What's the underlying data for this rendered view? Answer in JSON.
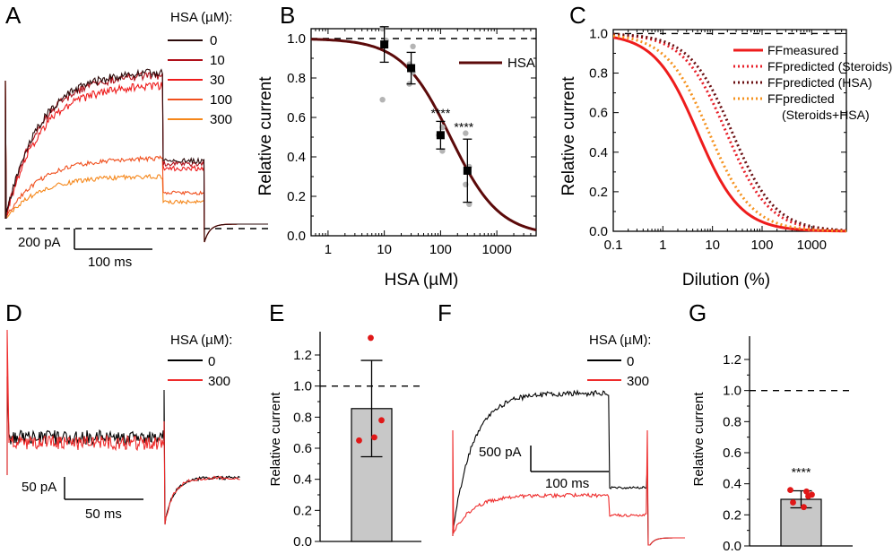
{
  "panel_labels": [
    "A",
    "B",
    "C",
    "D",
    "E",
    "F",
    "G"
  ],
  "colors": {
    "hsa0": "#2b0a0a",
    "hsa10": "#b0101a",
    "hsa30": "#ee1c1c",
    "hsa100": "#f0501e",
    "hsa300": "#f5871a",
    "fit": "#5c0a0a",
    "measured": "#ee1c1c",
    "steroids": "#e8202a",
    "hsa_pred": "#6b0f12",
    "steroids_hsa": "#f5921e",
    "black": "#000000",
    "red": "#ee2b2b",
    "bar_fill": "#c8c8c8",
    "dots_gray": "#b4b4b4"
  },
  "chart_data": [
    {
      "panel": "A",
      "type": "line",
      "title": "",
      "legend_title": "HSA (µM):",
      "series": [
        {
          "name": "0",
          "color": "#2b0a0a",
          "steady": 0.97,
          "tail": 0.38
        },
        {
          "name": "10",
          "color": "#b0101a",
          "steady": 0.95,
          "tail": 0.36
        },
        {
          "name": "30",
          "color": "#ee1c1c",
          "steady": 0.88,
          "tail": 0.33
        },
        {
          "name": "100",
          "color": "#f0501e",
          "steady": 0.4,
          "tail": 0.17
        },
        {
          "name": "300",
          "color": "#f5871a",
          "steady": 0.28,
          "tail": 0.11
        }
      ],
      "scalebar_y": "200 pA",
      "scalebar_x": "100 ms"
    },
    {
      "panel": "B",
      "type": "scatter",
      "xscale": "log",
      "xlim": [
        0.5,
        5000
      ],
      "ylim": [
        0.0,
        1.05
      ],
      "xlabel": "HSA (µM)",
      "ylabel": "Relative current",
      "xticks": [
        "1",
        "10",
        "100",
        "1000"
      ],
      "yticks": [
        "0.0",
        "0.2",
        "0.4",
        "0.6",
        "0.8",
        "1.0"
      ],
      "legend": [
        "HSA"
      ],
      "fit": {
        "ic50": 150,
        "hill": 1.0
      },
      "points": [
        {
          "x": 10,
          "y": 0.97,
          "err": 0.09
        },
        {
          "x": 30,
          "y": 0.85,
          "err": 0.08
        },
        {
          "x": 100,
          "y": 0.51,
          "err": 0.07
        },
        {
          "x": 300,
          "y": 0.33,
          "err": 0.16
        }
      ],
      "individual": [
        {
          "x": 10,
          "y": 1.05
        },
        {
          "x": 10,
          "y": 0.99
        },
        {
          "x": 10,
          "y": 0.69
        },
        {
          "x": 30,
          "y": 0.96
        },
        {
          "x": 30,
          "y": 0.87
        },
        {
          "x": 30,
          "y": 0.83
        },
        {
          "x": 30,
          "y": 0.77
        },
        {
          "x": 100,
          "y": 0.55
        },
        {
          "x": 100,
          "y": 0.51
        },
        {
          "x": 100,
          "y": 0.43
        },
        {
          "x": 300,
          "y": 0.52
        },
        {
          "x": 300,
          "y": 0.35
        },
        {
          "x": 300,
          "y": 0.26
        },
        {
          "x": 300,
          "y": 0.16
        }
      ],
      "annotations": [
        {
          "x": 100,
          "y": 0.6,
          "text": "****"
        },
        {
          "x": 300,
          "y": 0.53,
          "text": "****"
        }
      ],
      "reference_line": 1.0
    },
    {
      "panel": "C",
      "type": "line",
      "xscale": "log",
      "xlim": [
        0.1,
        5000
      ],
      "ylim": [
        0.0,
        1.02
      ],
      "xlabel": "Dilution (%)",
      "ylabel": "Relative current",
      "xticks": [
        "0.1",
        "1",
        "10",
        "100",
        "1000"
      ],
      "yticks": [
        "0.0",
        "0.2",
        "0.4",
        "0.6",
        "0.8",
        "1.0"
      ],
      "series": [
        {
          "name": "FFmeasured",
          "style": "solid",
          "color": "#ee1c1c",
          "ic50": 5.0
        },
        {
          "name": "FFpredicted (Steroids)",
          "style": "dotted",
          "color": "#e8202a",
          "ic50": 19.0
        },
        {
          "name": "FFpredicted (HSA)",
          "style": "dotted",
          "color": "#6b0f12",
          "ic50": 25.0
        },
        {
          "name": "FFpredicted (Steroids+HSA)",
          "style": "dotted",
          "color": "#f5921e",
          "ic50": 8.5
        }
      ],
      "legend_labels": [
        "FFmeasured",
        "FFpredicted (Steroids)",
        "FFpredicted (HSA)",
        "FFpredicted",
        "(Steroids+HSA)"
      ],
      "hill": 1.0,
      "reference_line": 1.0
    },
    {
      "panel": "D",
      "type": "line",
      "legend_title": "HSA (µM):",
      "series": [
        {
          "name": "0",
          "color": "#000000",
          "level": 0.42
        },
        {
          "name": "300",
          "color": "#ee2b2b",
          "level": 0.36
        }
      ],
      "scalebar_y": "50 pA",
      "scalebar_x": "50 ms"
    },
    {
      "panel": "E",
      "type": "bar",
      "ylabel": "Relative current",
      "ylim": [
        0.0,
        1.35
      ],
      "yticks": [
        "0.0",
        "0.2",
        "0.4",
        "0.6",
        "0.8",
        "1.0",
        "1.2"
      ],
      "values": [
        0.855
      ],
      "err": 0.31,
      "individual": [
        0.65,
        0.67,
        0.78,
        1.31
      ],
      "reference_line": 1.0
    },
    {
      "panel": "F",
      "type": "line",
      "legend_title": "HSA (µM):",
      "series": [
        {
          "name": "0",
          "color": "#000000",
          "steady": 0.92,
          "tail": 0.3
        },
        {
          "name": "300",
          "color": "#ee2b2b",
          "steady": 0.25,
          "tail": 0.12
        }
      ],
      "scalebar_y": "500 pA",
      "scalebar_x": "100 ms"
    },
    {
      "panel": "G",
      "type": "bar",
      "ylabel": "Relative current",
      "ylim": [
        0.0,
        1.35
      ],
      "yticks": [
        "0.0",
        "0.2",
        "0.4",
        "0.6",
        "0.8",
        "1.0",
        "1.2"
      ],
      "values": [
        0.3
      ],
      "err": 0.055,
      "individual": [
        0.36,
        0.35,
        0.33,
        0.28,
        0.25,
        0.32
      ],
      "significance": "****",
      "reference_line": 1.0
    }
  ]
}
